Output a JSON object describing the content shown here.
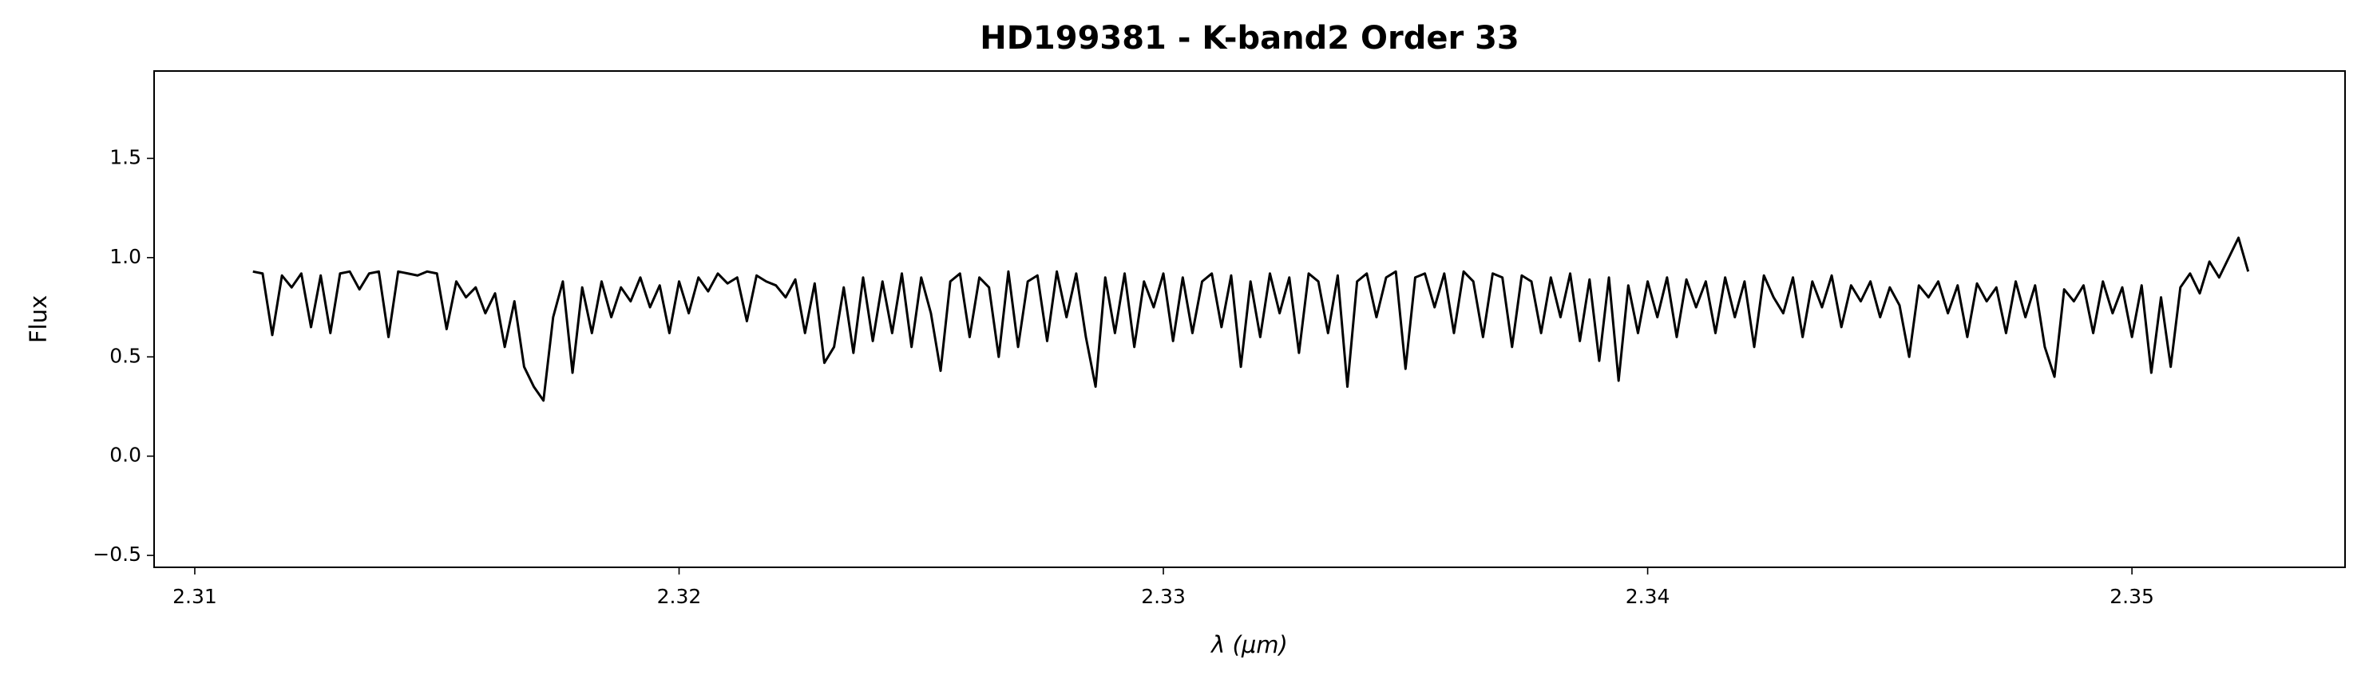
{
  "chart_data": {
    "type": "line",
    "title": "HD199381 - K-band2 Order 33",
    "x_label": "λ (μm)",
    "y_label": "Flux",
    "color": "#000000",
    "xlim": [
      2.30916,
      2.3544
    ],
    "ylim": [
      -0.56,
      1.94
    ],
    "xticks": [
      2.31,
      2.32,
      2.33,
      2.34,
      2.35
    ],
    "yticks": [
      {
        "value": -0.5,
        "label": "−0.5"
      },
      {
        "value": 0,
        "label": "0.0"
      },
      0.5,
      {
        "value": 1,
        "label": "1.0"
      },
      1.5
    ],
    "x": [
      2.3112,
      2.3114,
      2.3116,
      2.3118,
      2.312,
      2.3122,
      2.3124,
      2.3126,
      2.3128,
      2.313,
      2.3132,
      2.3134,
      2.3136,
      2.3138,
      2.314,
      2.3142,
      2.3144,
      2.3146,
      2.3148,
      2.315,
      2.3152,
      2.3154,
      2.3156,
      2.3158,
      2.316,
      2.3162,
      2.3164,
      2.3166,
      2.3168,
      2.317,
      2.3172,
      2.3174,
      2.3176,
      2.3178,
      2.318,
      2.3182,
      2.3184,
      2.3186,
      2.3188,
      2.319,
      2.3192,
      2.3194,
      2.3196,
      2.3198,
      2.32,
      2.3202,
      2.3204,
      2.3206,
      2.3208,
      2.321,
      2.3212,
      2.3214,
      2.3216,
      2.3218,
      2.322,
      2.3222,
      2.3224,
      2.3226,
      2.3228,
      2.323,
      2.3232,
      2.3234,
      2.3236,
      2.3238,
      2.324,
      2.3242,
      2.3244,
      2.3246,
      2.3248,
      2.325,
      2.3252,
      2.3254,
      2.3256,
      2.3258,
      2.326,
      2.3262,
      2.3264,
      2.3266,
      2.3268,
      2.327,
      2.3272,
      2.3274,
      2.3276,
      2.3278,
      2.328,
      2.3282,
      2.3284,
      2.3286,
      2.3288,
      2.329,
      2.3292,
      2.3294,
      2.3296,
      2.3298,
      2.33,
      2.3302,
      2.3304,
      2.3306,
      2.3308,
      2.331,
      2.3312,
      2.3314,
      2.3316,
      2.3318,
      2.332,
      2.3322,
      2.3324,
      2.3326,
      2.3328,
      2.333,
      2.3332,
      2.3334,
      2.3336,
      2.3338,
      2.334,
      2.3342,
      2.3344,
      2.3346,
      2.3348,
      2.335,
      2.3352,
      2.3354,
      2.3356,
      2.3358,
      2.336,
      2.3362,
      2.3364,
      2.3366,
      2.3368,
      2.337,
      2.3372,
      2.3374,
      2.3376,
      2.3378,
      2.338,
      2.3382,
      2.3384,
      2.3386,
      2.3388,
      2.339,
      2.3392,
      2.3394,
      2.3396,
      2.3398,
      2.34,
      2.3402,
      2.3404,
      2.3406,
      2.3408,
      2.341,
      2.3412,
      2.3414,
      2.3416,
      2.3418,
      2.342,
      2.3422,
      2.3424,
      2.3426,
      2.3428,
      2.343,
      2.3432,
      2.3434,
      2.3436,
      2.3438,
      2.344,
      2.3442,
      2.3444,
      2.3446,
      2.3448,
      2.345,
      2.3452,
      2.3454,
      2.3456,
      2.3458,
      2.346,
      2.3462,
      2.3464,
      2.3466,
      2.3468,
      2.347,
      2.3472,
      2.3474,
      2.3476,
      2.3478,
      2.348,
      2.3482,
      2.3484,
      2.3486,
      2.3488,
      2.349,
      2.3492,
      2.3494,
      2.3496,
      2.3498,
      2.35,
      2.3502,
      2.3504,
      2.3506,
      2.3508,
      2.351,
      2.3512,
      2.3514,
      2.3516,
      2.3518,
      2.352,
      2.3522,
      2.3524
    ],
    "values": [
      0.93,
      0.92,
      0.61,
      0.91,
      0.85,
      0.92,
      0.65,
      0.91,
      0.62,
      0.92,
      0.93,
      0.84,
      0.92,
      0.93,
      0.6,
      0.93,
      0.92,
      0.91,
      0.93,
      0.92,
      0.64,
      0.88,
      0.8,
      0.85,
      0.72,
      0.82,
      0.55,
      0.78,
      0.45,
      0.35,
      0.28,
      0.7,
      0.88,
      0.42,
      0.85,
      0.62,
      0.88,
      0.7,
      0.85,
      0.78,
      0.9,
      0.75,
      0.86,
      0.62,
      0.88,
      0.72,
      0.9,
      0.83,
      0.92,
      0.87,
      0.9,
      0.68,
      0.91,
      0.88,
      0.86,
      0.8,
      0.89,
      0.62,
      0.87,
      0.47,
      0.55,
      0.85,
      0.52,
      0.9,
      0.58,
      0.88,
      0.62,
      0.92,
      0.55,
      0.9,
      0.72,
      0.43,
      0.88,
      0.92,
      0.6,
      0.9,
      0.85,
      0.5,
      0.93,
      0.55,
      0.88,
      0.91,
      0.58,
      0.93,
      0.7,
      0.92,
      0.6,
      0.35,
      0.9,
      0.62,
      0.92,
      0.55,
      0.88,
      0.75,
      0.92,
      0.58,
      0.9,
      0.62,
      0.88,
      0.92,
      0.65,
      0.91,
      0.45,
      0.88,
      0.6,
      0.92,
      0.72,
      0.9,
      0.52,
      0.92,
      0.88,
      0.62,
      0.91,
      0.35,
      0.88,
      0.92,
      0.7,
      0.9,
      0.93,
      0.44,
      0.9,
      0.92,
      0.75,
      0.92,
      0.62,
      0.93,
      0.88,
      0.6,
      0.92,
      0.9,
      0.55,
      0.91,
      0.88,
      0.62,
      0.9,
      0.7,
      0.92,
      0.58,
      0.89,
      0.48,
      0.9,
      0.38,
      0.86,
      0.62,
      0.88,
      0.7,
      0.9,
      0.6,
      0.89,
      0.75,
      0.88,
      0.62,
      0.9,
      0.7,
      0.88,
      0.55,
      0.91,
      0.8,
      0.72,
      0.9,
      0.6,
      0.88,
      0.75,
      0.91,
      0.65,
      0.86,
      0.78,
      0.88,
      0.7,
      0.85,
      0.76,
      0.5,
      0.86,
      0.8,
      0.88,
      0.72,
      0.86,
      0.6,
      0.87,
      0.78,
      0.85,
      0.62,
      0.88,
      0.7,
      0.86,
      0.55,
      0.4,
      0.84,
      0.78,
      0.86,
      0.62,
      0.88,
      0.72,
      0.85,
      0.6,
      0.86,
      0.42,
      0.8,
      0.45,
      0.85,
      0.92,
      0.82,
      0.98,
      0.9,
      1.0,
      1.1,
      0.93
    ]
  }
}
